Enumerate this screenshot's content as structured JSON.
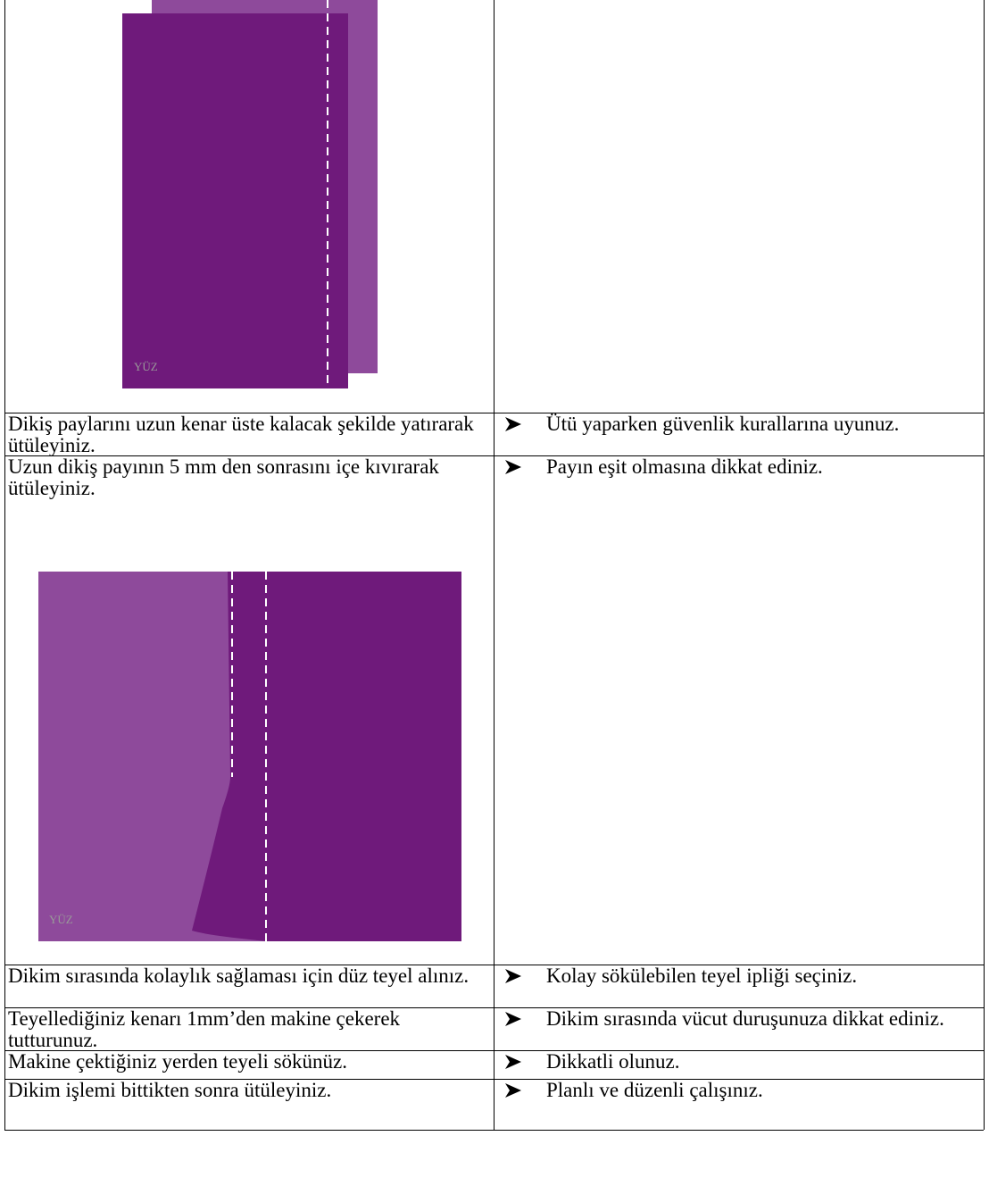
{
  "figures": [
    {
      "label": "YÜZ"
    },
    {
      "label": "YÜZ"
    }
  ],
  "rows": [
    {
      "step": "Dikiş paylarını uzun kenar üste kalacak şekilde yatırarak ütüleyiniz.",
      "note": "Ütü yaparken güvenlik kurallarına uyunuz."
    },
    {
      "step": "Uzun dikiş payının 5 mm den sonrasını içe kıvırarak ütüleyiniz.",
      "note": "Payın eşit olmasına dikkat ediniz."
    },
    {
      "step": "Dikim sırasında kolaylık sağlaması için düz teyel alınız.",
      "note": "Kolay sökülebilen teyel ipliği seçiniz."
    },
    {
      "step": "Teyellediğiniz kenarı 1mm’den makine çekerek tutturunuz.",
      "note": "Dikim sırasında vücut duruşunuza dikkat ediniz."
    },
    {
      "step": "Makine çektiğiniz yerden teyeli sökünüz.",
      "note": "Dikkatli olunuz."
    },
    {
      "step": "Dikim işlemi bittikten sonra ütüleyiniz.",
      "note": "Planlı ve düzenli çalışınız."
    }
  ]
}
